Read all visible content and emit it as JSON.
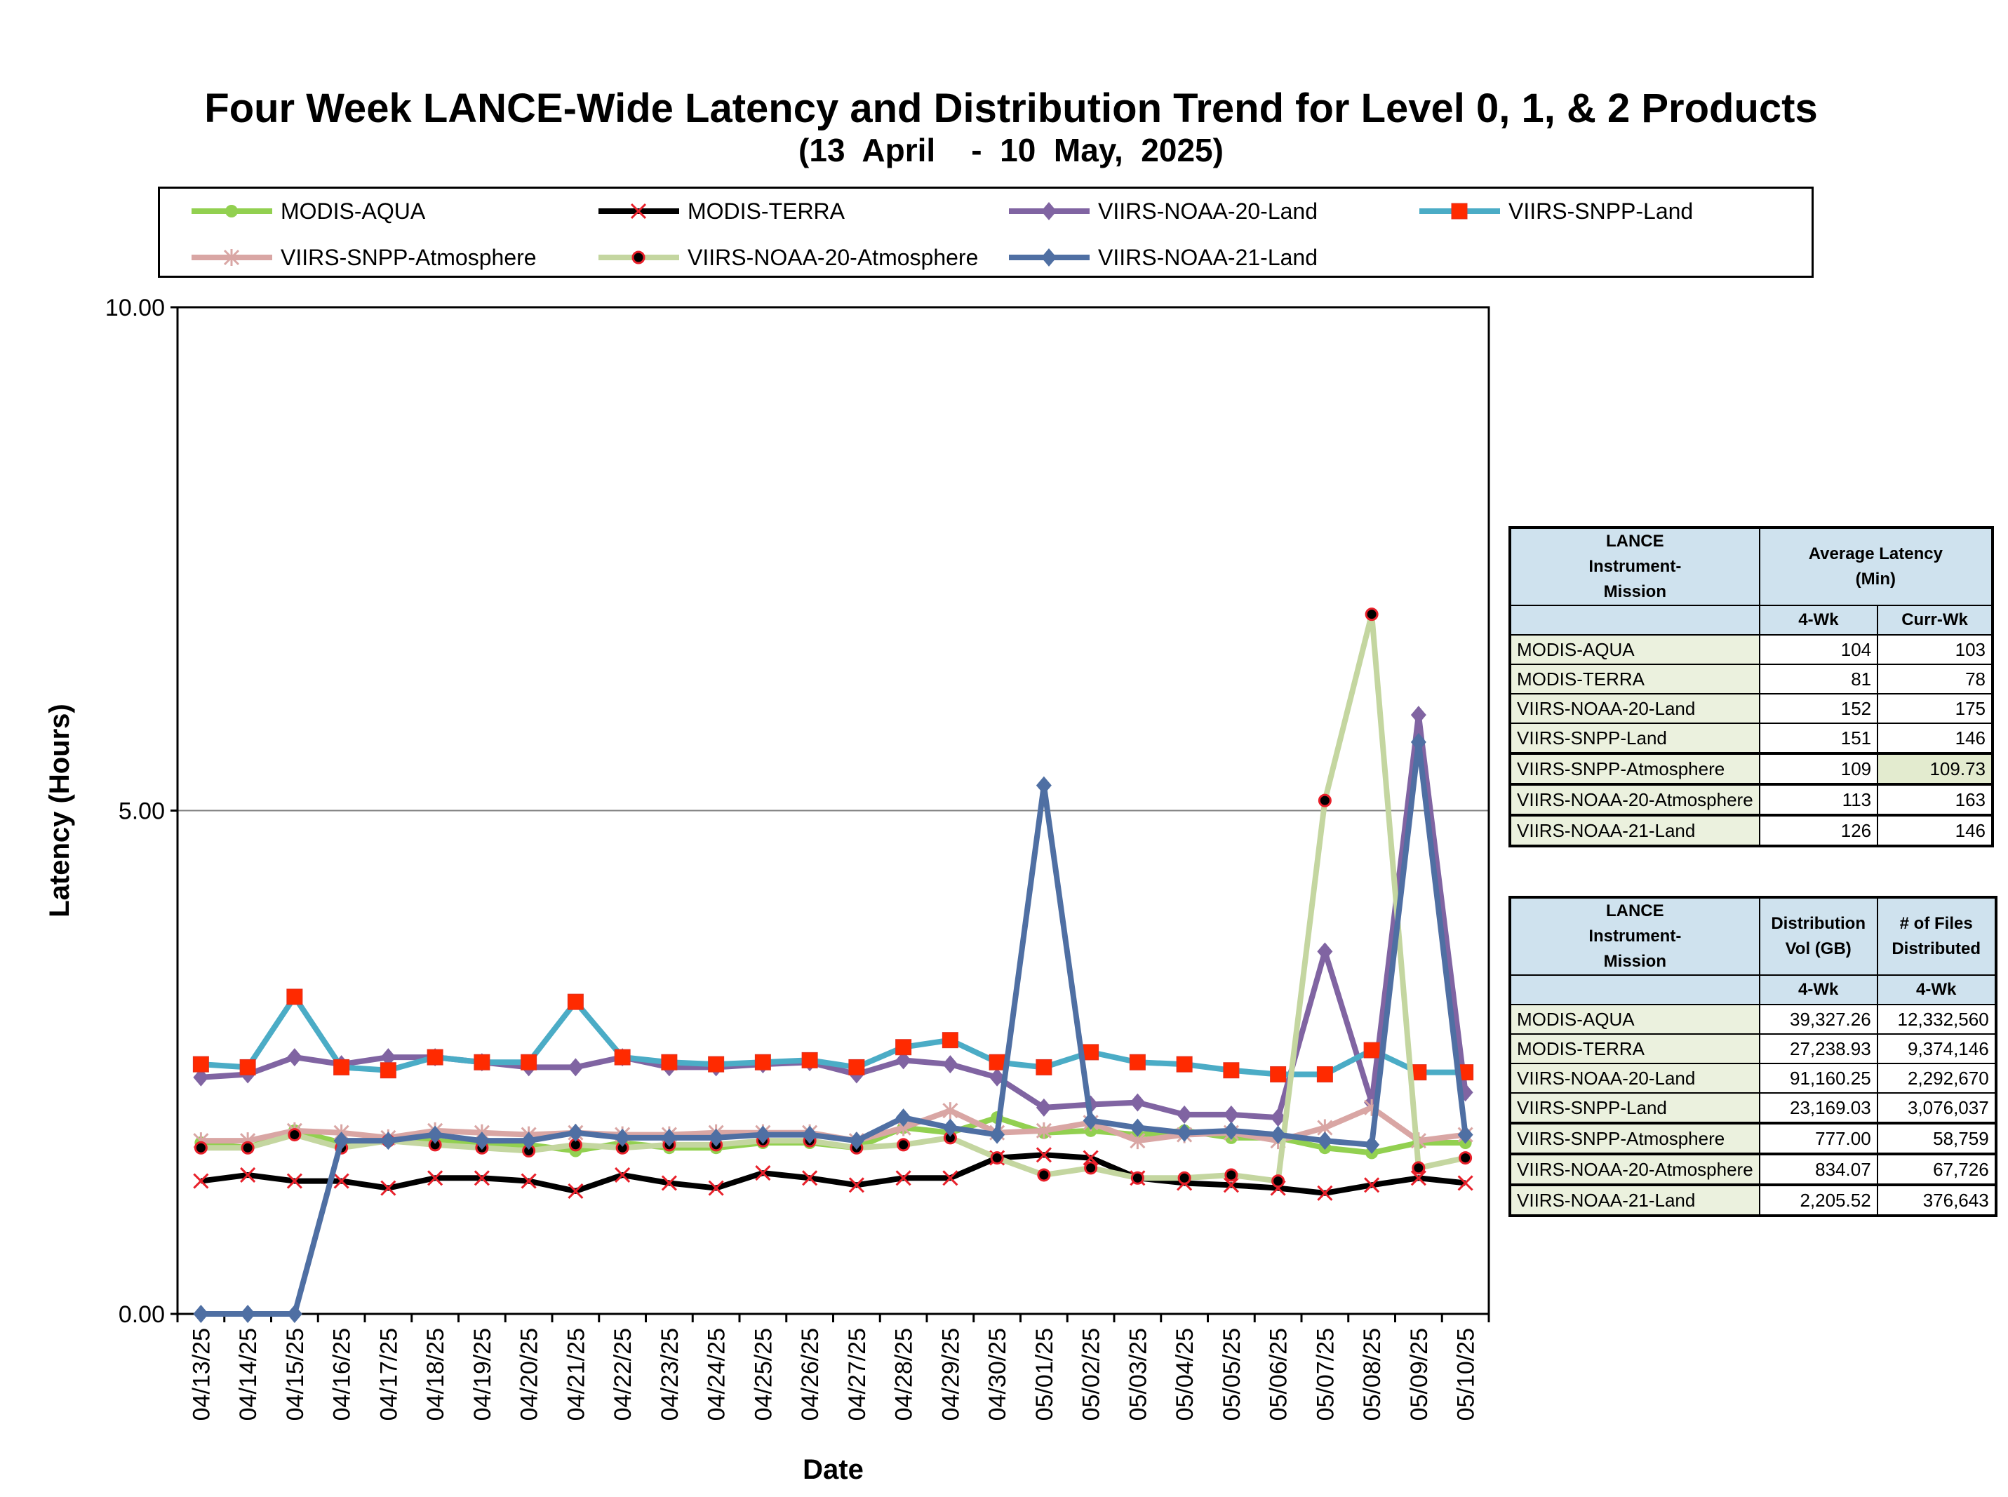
{
  "title": "Four Week LANCE-Wide Latency and Distribution Trend for Level 0, 1, & 2 Products",
  "subtitle": "(13  April    -  10  May,  2025)",
  "chart_data": {
    "type": "line",
    "xlabel": "Date",
    "ylabel": "Latency (Hours)",
    "ylim": [
      0,
      10
    ],
    "yticks": [
      "0.00",
      "5.00",
      "10.00"
    ],
    "grid": "horizontal at 5.00",
    "legend_position": "top",
    "categories": [
      "04/13/25",
      "04/14/25",
      "04/15/25",
      "04/16/25",
      "04/17/25",
      "04/18/25",
      "04/19/25",
      "04/20/25",
      "04/21/25",
      "04/22/25",
      "04/23/25",
      "04/24/25",
      "04/25/25",
      "04/26/25",
      "04/27/25",
      "04/28/25",
      "04/29/25",
      "04/30/25",
      "05/01/25",
      "05/02/25",
      "05/03/25",
      "05/04/25",
      "05/05/25",
      "05/06/25",
      "05/07/25",
      "05/08/25",
      "05/09/25",
      "05/10/25"
    ],
    "series": [
      {
        "name": "MODIS-AQUA",
        "color": "#92d050",
        "marker": "circle",
        "values": [
          1.7,
          1.65,
          1.82,
          1.7,
          1.72,
          1.72,
          1.68,
          1.68,
          1.62,
          1.7,
          1.65,
          1.65,
          1.7,
          1.7,
          1.65,
          1.85,
          1.8,
          1.95,
          1.8,
          1.82,
          1.78,
          1.82,
          1.75,
          1.75,
          1.65,
          1.6,
          1.7,
          1.7
        ]
      },
      {
        "name": "MODIS-TERRA",
        "color": "#000000",
        "marker": "x",
        "values": [
          1.32,
          1.38,
          1.32,
          1.32,
          1.25,
          1.35,
          1.35,
          1.32,
          1.22,
          1.38,
          1.3,
          1.25,
          1.4,
          1.35,
          1.28,
          1.35,
          1.35,
          1.55,
          1.58,
          1.55,
          1.35,
          1.3,
          1.28,
          1.25,
          1.2,
          1.28,
          1.35,
          1.3
        ]
      },
      {
        "name": "VIIRS-NOAA-20-Land",
        "color": "#8064a2",
        "marker": "diamond",
        "values": [
          2.35,
          2.38,
          2.55,
          2.48,
          2.55,
          2.55,
          2.5,
          2.45,
          2.45,
          2.55,
          2.45,
          2.45,
          2.48,
          2.5,
          2.38,
          2.52,
          2.48,
          2.35,
          2.05,
          2.08,
          2.1,
          1.98,
          1.98,
          1.95,
          3.6,
          2.1,
          5.95,
          2.2
        ]
      },
      {
        "name": "VIIRS-SNPP-Land",
        "color": "#4bacc6",
        "marker": "square",
        "values": [
          2.48,
          2.45,
          3.15,
          2.45,
          2.42,
          2.55,
          2.5,
          2.5,
          3.1,
          2.55,
          2.5,
          2.48,
          2.5,
          2.52,
          2.45,
          2.65,
          2.72,
          2.5,
          2.45,
          2.6,
          2.5,
          2.48,
          2.42,
          2.38,
          2.38,
          2.62,
          2.4,
          2.4
        ]
      },
      {
        "name": "VIIRS-SNPP-Atmosphere",
        "color": "#d9a6a4",
        "marker": "asterisk",
        "values": [
          1.72,
          1.72,
          1.82,
          1.8,
          1.75,
          1.82,
          1.8,
          1.78,
          1.8,
          1.78,
          1.78,
          1.8,
          1.8,
          1.8,
          1.72,
          1.85,
          2.02,
          1.8,
          1.82,
          1.9,
          1.72,
          1.78,
          1.8,
          1.72,
          1.85,
          2.05,
          1.72,
          1.78
        ]
      },
      {
        "name": "VIIRS-NOAA-20-Atmosphere",
        "color": "#c4d6a0",
        "marker": "dot",
        "values": [
          1.65,
          1.65,
          1.78,
          1.65,
          1.72,
          1.68,
          1.65,
          1.62,
          1.68,
          1.65,
          1.68,
          1.68,
          1.72,
          1.72,
          1.65,
          1.68,
          1.75,
          1.55,
          1.38,
          1.45,
          1.35,
          1.35,
          1.38,
          1.32,
          5.1,
          6.95,
          1.45,
          1.55
        ]
      },
      {
        "name": "VIIRS-NOAA-21-Land",
        "color": "#4f6fa3",
        "marker": "diamond",
        "values": [
          0.0,
          0.0,
          0.0,
          1.72,
          1.72,
          1.78,
          1.72,
          1.72,
          1.8,
          1.75,
          1.75,
          1.75,
          1.78,
          1.78,
          1.72,
          1.95,
          1.85,
          1.78,
          5.25,
          1.92,
          1.85,
          1.8,
          1.82,
          1.78,
          1.72,
          1.68,
          5.68,
          1.78
        ]
      }
    ]
  },
  "latency_table": {
    "header_col1": "LANCE Instrument-Mission",
    "header_col2": "Average Latency (Min)",
    "sub_4wk": "4-Wk",
    "sub_curr": "Curr-Wk",
    "rows": [
      {
        "name": "MODIS-AQUA",
        "wk4": "104",
        "curr": "103"
      },
      {
        "name": "MODIS-TERRA",
        "wk4": "81",
        "curr": "78"
      },
      {
        "name": "VIIRS-NOAA-20-Land",
        "wk4": "152",
        "curr": "175"
      },
      {
        "name": "VIIRS-SNPP-Land",
        "wk4": "151",
        "curr": "146"
      },
      {
        "name": "VIIRS-SNPP-Atmosphere",
        "wk4": "109",
        "curr": "109.73"
      },
      {
        "name": "VIIRS-NOAA-20-Atmosphere",
        "wk4": "113",
        "curr": "163"
      },
      {
        "name": "VIIRS-NOAA-21-Land",
        "wk4": "126",
        "curr": "146"
      }
    ]
  },
  "distribution_table": {
    "header_col1": "LANCE Instrument-Mission",
    "header_col2": "Distribution Vol (GB)",
    "header_col3": "# of Files Distributed",
    "sub_vol": "4-Wk",
    "sub_files": "4-Wk",
    "rows": [
      {
        "name": "MODIS-AQUA",
        "vol": "39,327.26",
        "files": "12,332,560"
      },
      {
        "name": "MODIS-TERRA",
        "vol": "27,238.93",
        "files": "9,374,146"
      },
      {
        "name": "VIIRS-NOAA-20-Land",
        "vol": "91,160.25",
        "files": "2,292,670"
      },
      {
        "name": "VIIRS-SNPP-Land",
        "vol": "23,169.03",
        "files": "3,076,037"
      },
      {
        "name": "VIIRS-SNPP-Atmosphere",
        "vol": "777.00",
        "files": "58,759"
      },
      {
        "name": "VIIRS-NOAA-20-Atmosphere",
        "vol": "834.07",
        "files": "67,726"
      },
      {
        "name": "VIIRS-NOAA-21-Land",
        "vol": "2,205.52",
        "files": "376,643"
      }
    ]
  }
}
